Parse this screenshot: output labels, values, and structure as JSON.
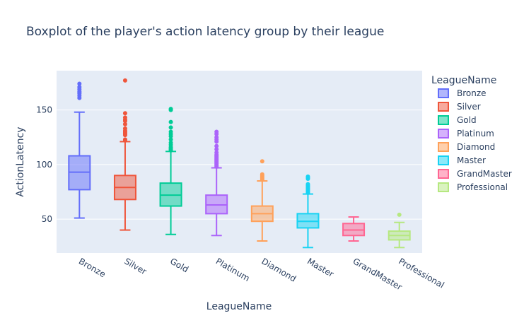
{
  "chart_data": {
    "type": "box",
    "title": "Boxplot of the player's action latency group by their league",
    "xlabel": "LeagueName",
    "ylabel": "ActionLatency",
    "ylim": [
      19,
      186
    ],
    "yticks": [
      50,
      100,
      150
    ],
    "grid": true,
    "legend": {
      "title": "LeagueName",
      "placement": "right"
    },
    "series": [
      {
        "name": "Bronze",
        "color": "#636efa",
        "q1": 77,
        "median": 93,
        "q3": 108,
        "lower": 51,
        "upper": 148,
        "outliers": [
          161,
          163,
          165,
          166,
          167,
          169,
          171,
          174
        ]
      },
      {
        "name": "Silver",
        "color": "#ef553b",
        "q1": 68,
        "median": 79,
        "q3": 90,
        "lower": 40,
        "upper": 121,
        "outliers": [
          122,
          123,
          127,
          128,
          129,
          130,
          131,
          133,
          137,
          140,
          141,
          143,
          147,
          177
        ]
      },
      {
        "name": "Gold",
        "color": "#00cc96",
        "q1": 62,
        "median": 72,
        "q3": 83,
        "lower": 36,
        "upper": 112,
        "outliers": [
          113,
          114,
          115,
          116,
          118,
          120,
          123,
          126,
          128,
          130,
          134,
          139,
          150,
          151
        ]
      },
      {
        "name": "Platinum",
        "color": "#ab63fa",
        "q1": 55,
        "median": 63,
        "q3": 72,
        "lower": 35,
        "upper": 97,
        "outliers": [
          98,
          99,
          100,
          101,
          102,
          103,
          104,
          105,
          106,
          107,
          108,
          109,
          111,
          114,
          117,
          121,
          123,
          125,
          128,
          130
        ]
      },
      {
        "name": "Diamond",
        "color": "#ffa15a",
        "q1": 48,
        "median": 55,
        "q3": 62,
        "lower": 30,
        "upper": 85,
        "outliers": [
          86,
          87,
          88,
          89,
          90,
          91,
          103
        ]
      },
      {
        "name": "Master",
        "color": "#19d3f3",
        "q1": 42,
        "median": 48,
        "q3": 55,
        "lower": 24,
        "upper": 73,
        "outliers": [
          74,
          75,
          76,
          77,
          78,
          79,
          80,
          81,
          82,
          87,
          88,
          89
        ]
      },
      {
        "name": "GrandMaster",
        "color": "#ff6692",
        "q1": 35,
        "median": 40,
        "q3": 46,
        "lower": 30,
        "upper": 52,
        "outliers": []
      },
      {
        "name": "Professional",
        "color": "#b6e880",
        "q1": 31,
        "median": 35,
        "q3": 39,
        "lower": 24,
        "upper": 47,
        "outliers": [
          54
        ]
      }
    ]
  }
}
